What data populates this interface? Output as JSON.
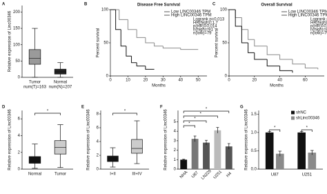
{
  "chart_data": [
    {
      "type": "box",
      "panel": "A",
      "ylabel": "Relative expression of Linc00346",
      "categories": [
        "Tumor",
        "Normal"
      ],
      "annotations": [
        "num(T)=163",
        "num(N)=207"
      ],
      "boxes": [
        {
          "min": 0,
          "q1": 40,
          "median": 58,
          "q3": 85,
          "max": 150
        },
        {
          "min": 0,
          "q1": 10,
          "median": 17,
          "q3": 25,
          "max": 45
        }
      ],
      "colors": [
        "#9a9a9a",
        "#222222"
      ],
      "ylim": [
        0,
        220
      ],
      "yticks": [
        0,
        50,
        100,
        150,
        200
      ]
    },
    {
      "type": "line",
      "panel": "B",
      "title": "Disease Free Survival",
      "xlabel": "Months",
      "ylabel": "Percent survival",
      "series": [
        {
          "name": "Low LINC00346 TPM",
          "color": "#8a8a8a",
          "x": [
            0,
            5,
            10,
            15,
            20,
            25,
            30,
            40,
            50
          ],
          "values": [
            100,
            85,
            70,
            58,
            50,
            45,
            42,
            40,
            40
          ]
        },
        {
          "name": "High LINC00346 TPM",
          "color": "#111111",
          "x": [
            0,
            3,
            6,
            9,
            12,
            15,
            20,
            25
          ],
          "values": [
            100,
            70,
            45,
            30,
            20,
            15,
            10,
            10
          ]
        }
      ],
      "annotations": [
        "Logrank p=0.013",
        "HR(high)=1.7",
        "p(HR)=0.014",
        "n(high)=91",
        "n(low)=79"
      ],
      "xlim": [
        0,
        55
      ],
      "xticks": [
        0,
        10,
        20,
        30,
        40,
        50
      ],
      "ylim": [
        0,
        100
      ],
      "yticks": [
        0,
        50,
        100
      ]
    },
    {
      "type": "line",
      "panel": "C",
      "title": "Overall Survival",
      "xlabel": "Months",
      "ylabel": "Percent survival",
      "series": [
        {
          "name": "Low LINC00346 TPM",
          "color": "#8a8a8a",
          "x": [
            0,
            5,
            10,
            15,
            20,
            30,
            40,
            50,
            60,
            70
          ],
          "values": [
            100,
            88,
            70,
            55,
            45,
            32,
            25,
            18,
            12,
            10
          ]
        },
        {
          "name": "High LINC00346 TPM",
          "color": "#111111",
          "x": [
            0,
            5,
            10,
            15,
            20,
            30,
            40,
            50
          ],
          "values": [
            100,
            75,
            50,
            35,
            25,
            15,
            8,
            5
          ]
        }
      ],
      "annotations": [
        "Logrank p=0.022",
        "HR(high)=1.5",
        "p(HR)=0.021",
        "n(high)=81",
        "n(low)=79"
      ],
      "xlim": [
        0,
        75
      ],
      "xticks": [
        0,
        20,
        40,
        60
      ],
      "ylim": [
        0,
        100
      ],
      "yticks": [
        0,
        50,
        100
      ]
    },
    {
      "type": "box",
      "panel": "D",
      "ylabel": "Relative expression of Linc00346",
      "categories": [
        "Normal",
        "Tumor"
      ],
      "significance": [
        "*"
      ],
      "boxes": [
        {
          "min": 0.1,
          "q1": 0.7,
          "median": 1.0,
          "q3": 1.5,
          "max": 3.0
        },
        {
          "min": 0.2,
          "q1": 1.8,
          "median": 2.6,
          "q3": 3.4,
          "max": 5.3
        }
      ],
      "colors": [
        "#111111",
        "#cccccc"
      ],
      "ylim": [
        0,
        7
      ],
      "yticks": [
        0,
        2,
        4,
        6
      ]
    },
    {
      "type": "box",
      "panel": "E",
      "ylabel": "Relative expression of Linc00346",
      "categories": [
        "I+II",
        "III+IV"
      ],
      "significance": [
        "*"
      ],
      "boxes": [
        {
          "min": 0.3,
          "q1": 1.1,
          "median": 1.5,
          "q3": 1.9,
          "max": 3.1
        },
        {
          "min": 0.8,
          "q1": 2.3,
          "median": 3.0,
          "q3": 4.3,
          "max": 7.0
        }
      ],
      "colors": [
        "#111111",
        "#cccccc"
      ],
      "ylim": [
        0,
        8.5
      ],
      "yticks": [
        0,
        2,
        4,
        6,
        8
      ]
    },
    {
      "type": "bar",
      "panel": "F",
      "ylabel": "Relative expression of Linc00346",
      "categories": [
        "NHA",
        "U87",
        "LN229",
        "U251",
        "H4"
      ],
      "values": [
        1.0,
        3.2,
        2.8,
        4.1,
        2.4
      ],
      "errors": [
        0.05,
        0.3,
        0.25,
        0.3,
        0.3
      ],
      "colors": [
        "#111111",
        "#777777",
        "#555555",
        "#bbbbbb",
        "#555555"
      ],
      "significance": [
        "*",
        "*",
        "*",
        "*"
      ],
      "ylim": [
        0,
        6.2
      ],
      "yticks": [
        0,
        1,
        2,
        3,
        4,
        5
      ]
    },
    {
      "type": "bar",
      "panel": "G",
      "ylabel": "Relative expression of Linc00346",
      "categories": [
        "U87",
        "U251"
      ],
      "series": [
        {
          "name": "shNC",
          "color": "#111111",
          "values": [
            1.0,
            1.0
          ],
          "errors": [
            0.03,
            0.03
          ]
        },
        {
          "name": "shLinc00346",
          "color": "#8a8a8a",
          "values": [
            0.42,
            0.45
          ],
          "errors": [
            0.07,
            0.06
          ]
        }
      ],
      "significance": [
        "*",
        "*"
      ],
      "ylim": [
        0,
        1.6
      ],
      "yticks": [
        {
          "value": 0,
          "label": "0.0"
        },
        {
          "value": 0.5,
          "label": "0.5"
        },
        {
          "value": 1,
          "label": "1.0"
        },
        {
          "value": 1.5,
          "label": "1.5"
        }
      ]
    }
  ]
}
